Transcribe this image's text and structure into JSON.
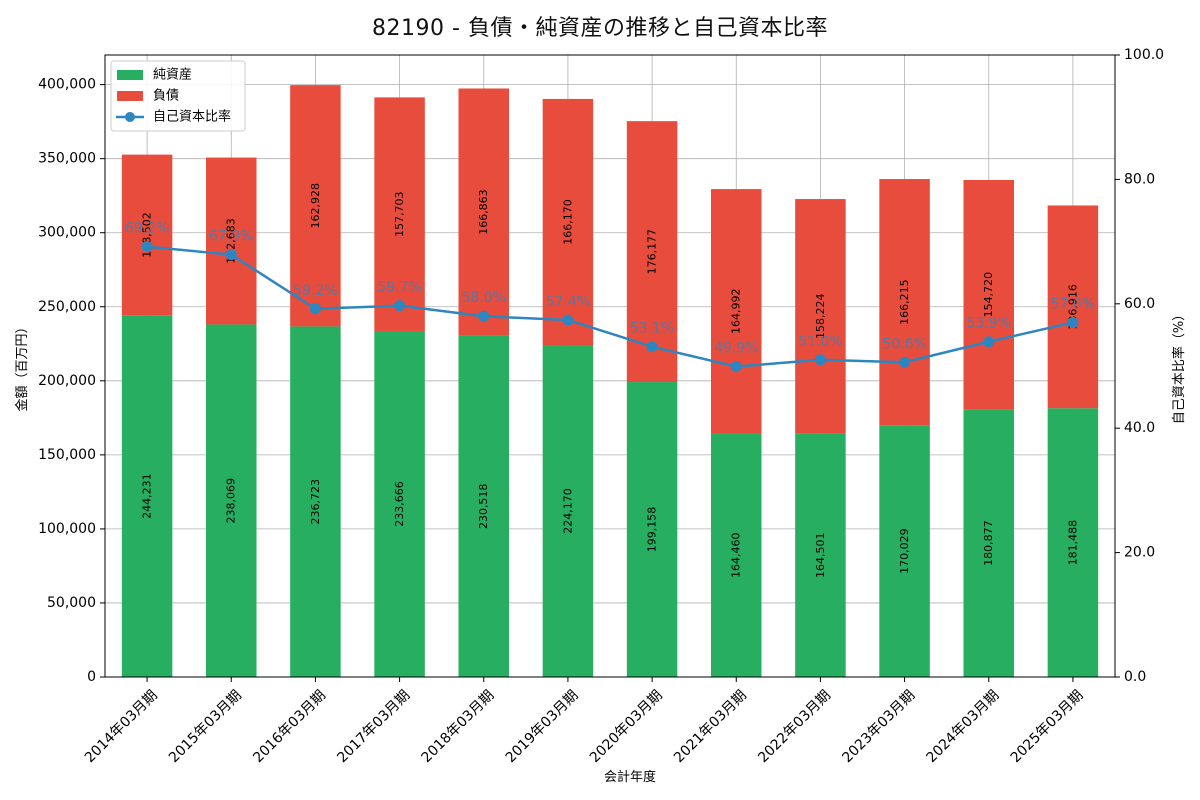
{
  "chart_data": {
    "type": "bar",
    "subtype": "stacked-bar-with-line",
    "title": "82190 - 負債・純資産の推移と自己資本比率",
    "xlabel": "会計年度",
    "ylabel_left": "金額（百万円）",
    "ylabel_right": "自己資本比率（%）",
    "ylim_left": [
      0,
      420000
    ],
    "ylim_right": [
      0,
      100
    ],
    "yticks_left": [
      0,
      50000,
      100000,
      150000,
      200000,
      250000,
      300000,
      350000,
      400000
    ],
    "yticks_left_labels": [
      "0",
      "50,000",
      "100,000",
      "150,000",
      "200,000",
      "250,000",
      "300,000",
      "350,000",
      "400,000"
    ],
    "yticks_right": [
      0,
      20,
      40,
      60,
      80,
      100
    ],
    "yticks_right_labels": [
      "0.0",
      "20.0",
      "40.0",
      "60.0",
      "80.0",
      "100.0"
    ],
    "grid": true,
    "legend_position": "top-left",
    "categories": [
      "2014年03月期",
      "2015年03月期",
      "2016年03月期",
      "2017年03月期",
      "2018年03月期",
      "2019年03月期",
      "2020年03月期",
      "2021年03月期",
      "2022年03月期",
      "2023年03月期",
      "2024年03月期",
      "2025年03月期"
    ],
    "series": [
      {
        "name": "純資産",
        "color": "#27ae60",
        "values": [
          244231,
          238069,
          236723,
          233666,
          230518,
          224170,
          199158,
          164460,
          164501,
          170029,
          180877,
          181488
        ],
        "labels": [
          "244,231",
          "238,069",
          "236,723",
          "233,666",
          "230,518",
          "224,170",
          "199,158",
          "164,460",
          "164,501",
          "170,029",
          "180,877",
          "181,488"
        ]
      },
      {
        "name": "負債",
        "color": "#e74c3c",
        "values": [
          108502,
          112683,
          162928,
          157703,
          166863,
          166170,
          176177,
          164992,
          158224,
          166215,
          154720,
          136916
        ],
        "labels": [
          "108,502",
          "112,683",
          "162,928",
          "157,703",
          "166,863",
          "166,170",
          "176,177",
          "164,992",
          "158,224",
          "166,215",
          "154,720",
          "136,916"
        ]
      }
    ],
    "line_series": {
      "name": "自己資本比率",
      "color": "#2e86c1",
      "axis": "right",
      "values": [
        69.2,
        67.9,
        59.2,
        59.7,
        58.0,
        57.4,
        53.1,
        49.9,
        51.0,
        50.6,
        53.9,
        57.0
      ],
      "labels": [
        "69.2%",
        "67.9%",
        "59.2%",
        "59.7%",
        "58.0%",
        "57.4%",
        "53.1%",
        "49.9%",
        "51.0%",
        "50.6%",
        "53.9%",
        "57.0%"
      ]
    }
  }
}
